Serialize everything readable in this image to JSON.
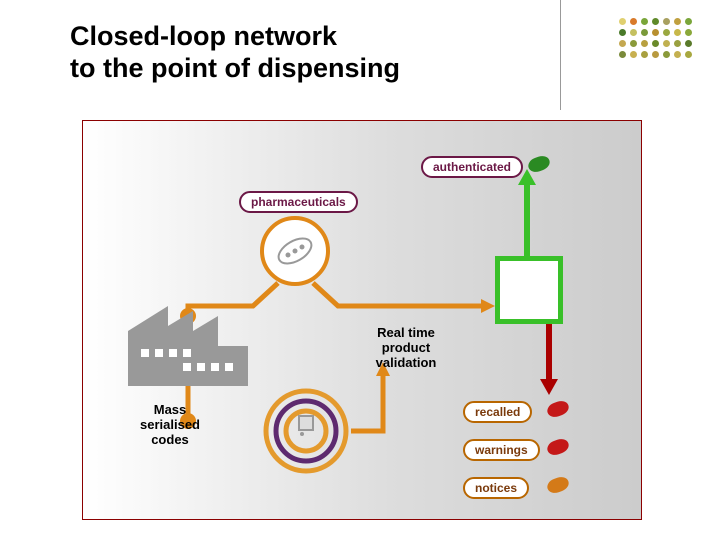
{
  "title_line1": "Closed-loop network",
  "title_line2": "to the point of dispensing",
  "labels": {
    "authenticated": "authenticated",
    "pharmaceuticals": "pharmaceuticals",
    "realtime1": "Real time",
    "realtime2": "product",
    "realtime3": "validation",
    "mass1": "Mass",
    "mass2": "serialised",
    "mass3": "codes",
    "recalled": "recalled",
    "warnings": "warnings",
    "notices": "notices"
  },
  "colors": {
    "maroon": "#6b1846",
    "orange": "#e08818",
    "dark_orange": "#b86600",
    "brown": "#7a3a0c",
    "green": "#39c029",
    "red_arrow": "#aa0000",
    "grey_factory": "#999999",
    "purple_ring": "#5e2a6f",
    "orange_ring": "#e49a2d",
    "red_tag": "#c41818",
    "orange_tag": "#d47a18",
    "green_tag": "#2a8a22",
    "title": "#000000",
    "bg_grad_start": "#ffffff",
    "bg_grad_end": "#cccccc"
  },
  "dotgrid_colors": [
    [
      "#e0d070",
      "#d97a2a",
      "#7aa63a",
      "#5f8a2a",
      "#a8a060",
      "#c0a040",
      "#7aa63a"
    ],
    [
      "#4a7a2a",
      "#c4c060",
      "#7a9a3a",
      "#b89030",
      "#9aa840",
      "#c8b84a",
      "#8aa83a"
    ],
    [
      "#c4a850",
      "#8a9a3a",
      "#b8a040",
      "#6a8a2a",
      "#c0b050",
      "#9aa040",
      "#5a7a2a"
    ],
    [
      "#7a8a3a",
      "#c8b050",
      "#a8a040",
      "#b89a40",
      "#8a9a3a",
      "#c4b050",
      "#a8a840"
    ]
  ],
  "layout": {
    "capsule_outline": "#e08818",
    "pill_auth_border": "#6b1846",
    "pill_pharma_border": "#6b1846",
    "pill_recalled_border": "#b86600",
    "pill_warnings_border": "#b86600",
    "pill_notices_border": "#b86600"
  }
}
